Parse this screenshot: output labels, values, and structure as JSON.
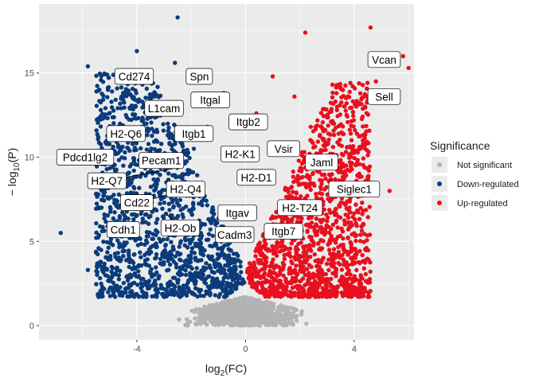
{
  "chart_data": {
    "type": "scatter",
    "title": "",
    "xlabel": {
      "prefix": "log",
      "sub": "2",
      "suffix": "(FC)"
    },
    "ylabel": {
      "prefix": "− log",
      "sub": "10",
      "suffix": "(P)"
    },
    "xlim": [
      -7.6,
      6.2
    ],
    "ylim": [
      -0.85,
      19.1
    ],
    "x_ticks": [
      -4,
      0,
      4
    ],
    "x_tick_labels": [
      "-4",
      "0",
      "4"
    ],
    "y_ticks": [
      0,
      5,
      10,
      15
    ],
    "y_tick_labels": [
      "0",
      "5",
      "10",
      "15"
    ],
    "grid": true,
    "legend": {
      "title": "Significance",
      "placement": "right",
      "entries": [
        {
          "label": "Not significant",
          "color": "#b3b3b3"
        },
        {
          "label": "Down-regulated",
          "color": "#0b3b7a"
        },
        {
          "label": "Up-regulated",
          "color": "#e8101f"
        }
      ]
    },
    "colors": {
      "panel": "#ebebeb",
      "grid": "#ffffff",
      "not_significant": "#b3b3b3",
      "down": "#0b3b7a",
      "up": "#e8101f"
    },
    "series": [
      {
        "name": "Down-regulated",
        "points": [
          [
            -6.8,
            5.5
          ],
          [
            -5.8,
            3.3
          ],
          [
            -5.8,
            15.4
          ],
          [
            -4.0,
            16.3
          ],
          [
            -2.5,
            18.3
          ],
          [
            -5.3,
            7.0
          ],
          [
            -4.8,
            9.0
          ],
          [
            -4.4,
            12.5
          ],
          [
            -3.9,
            14.5
          ],
          [
            -3.3,
            11.0
          ],
          [
            -3.5,
            6.5
          ],
          [
            -2.9,
            13.0
          ],
          [
            -2.6,
            15.6
          ],
          [
            -2.2,
            8.0
          ],
          [
            -1.9,
            10.5
          ],
          [
            -1.4,
            11.8
          ],
          [
            -1.1,
            6.0
          ],
          [
            -0.8,
            13.8
          ]
        ],
        "cloud": {
          "x_range": [
            -5.5,
            -0.05
          ],
          "y_range": [
            1.7,
            15.0
          ],
          "count": 1400,
          "seed": 11
        }
      },
      {
        "name": "Up-regulated",
        "points": [
          [
            2.2,
            17.4
          ],
          [
            4.6,
            17.7
          ],
          [
            5.8,
            16.0
          ],
          [
            6.0,
            15.3
          ],
          [
            4.8,
            14.5
          ],
          [
            4.4,
            13.0
          ],
          [
            5.3,
            8.0
          ],
          [
            4.1,
            11.4
          ],
          [
            3.7,
            9.5
          ],
          [
            3.2,
            14.3
          ],
          [
            2.8,
            7.5
          ],
          [
            2.4,
            11.8
          ],
          [
            1.8,
            13.6
          ],
          [
            1.4,
            5.5
          ],
          [
            1.0,
            14.8
          ],
          [
            0.7,
            9.0
          ],
          [
            0.4,
            12.6
          ],
          [
            3.0,
            6.2
          ]
        ],
        "cloud": {
          "x_range": [
            0.05,
            4.6
          ],
          "y_range": [
            1.7,
            14.5
          ],
          "count": 1400,
          "seed": 23
        }
      },
      {
        "name": "Not significant",
        "points": [],
        "cloud": {
          "x_range": [
            -2.6,
            2.6
          ],
          "y_range": [
            0,
            1.7
          ],
          "count": 900,
          "seed": 37
        }
      }
    ],
    "annotations": [
      {
        "text": "Vcan",
        "x": 5.1,
        "y": 15.8,
        "px": 5.6,
        "py": 15.4
      },
      {
        "text": "Sell",
        "x": 5.1,
        "y": 13.6,
        "px": 4.9,
        "py": 13.2
      },
      {
        "text": "Cd274",
        "x": -4.1,
        "y": 14.8,
        "px": -3.9,
        "py": 15.0
      },
      {
        "text": "Spn",
        "x": -1.7,
        "y": 14.8,
        "px": -2.0,
        "py": 15.2
      },
      {
        "text": "L1cam",
        "x": -3.0,
        "y": 12.9,
        "px": -2.8,
        "py": 13.2
      },
      {
        "text": "Itgal",
        "x": -1.3,
        "y": 13.4,
        "px": -1.6,
        "py": 13.0
      },
      {
        "text": "H2-Q6",
        "x": -4.4,
        "y": 11.4,
        "px": -3.8,
        "py": 11.4
      },
      {
        "text": "Itgb1",
        "x": -1.9,
        "y": 11.4,
        "px": -2.2,
        "py": 11.0
      },
      {
        "text": "Itgb2",
        "x": 0.1,
        "y": 12.1,
        "px": 0.5,
        "py": 12.0
      },
      {
        "text": "H2-K1",
        "x": -0.2,
        "y": 10.2,
        "px": 0.2,
        "py": 9.8
      },
      {
        "text": "Vsir",
        "x": 1.4,
        "y": 10.5,
        "px": 1.2,
        "py": 10.2
      },
      {
        "text": "Pdcd1lg2",
        "x": -5.9,
        "y": 10.0,
        "px": -4.9,
        "py": 10.1
      },
      {
        "text": "Pecam1",
        "x": -3.1,
        "y": 9.8,
        "px": -2.7,
        "py": 9.6
      },
      {
        "text": "Jaml",
        "x": 2.8,
        "y": 9.7,
        "px": 2.6,
        "py": 9.5
      },
      {
        "text": "H2-Q7",
        "x": -5.1,
        "y": 8.6,
        "px": -2.4,
        "py": 9.4
      },
      {
        "text": "H2-D1",
        "x": 0.4,
        "y": 8.8,
        "px": 0.2,
        "py": 8.5
      },
      {
        "text": "H2-Q4",
        "x": -2.2,
        "y": 8.1,
        "px": -2.7,
        "py": 8.6
      },
      {
        "text": "Siglec1",
        "x": 4.0,
        "y": 8.1,
        "px": 3.7,
        "py": 8.3
      },
      {
        "text": "Cd22",
        "x": -4.0,
        "y": 7.3,
        "px": -3.0,
        "py": 7.7
      },
      {
        "text": "H2-T24",
        "x": 2.0,
        "y": 7.0,
        "px": 1.7,
        "py": 7.3
      },
      {
        "text": "Itgav",
        "x": -0.3,
        "y": 6.7,
        "px": -0.5,
        "py": 7.0
      },
      {
        "text": "Cdh1",
        "x": -4.5,
        "y": 5.7,
        "px": -4.0,
        "py": 5.8
      },
      {
        "text": "H2-Ob",
        "x": -2.4,
        "y": 5.8,
        "px": -2.9,
        "py": 6.6
      },
      {
        "text": "Itgb7",
        "x": 1.4,
        "y": 5.6,
        "px": 1.2,
        "py": 5.9
      },
      {
        "text": "Cadm3",
        "x": -0.4,
        "y": 5.4,
        "px": -0.7,
        "py": 5.8
      }
    ]
  }
}
